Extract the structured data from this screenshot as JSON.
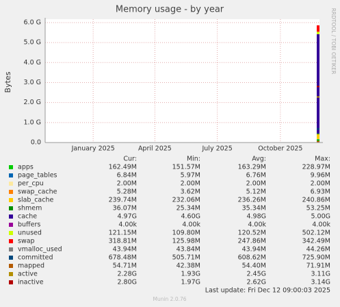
{
  "chart_data": {
    "type": "area",
    "title": "Memory usage - by year",
    "y_label": "Bytes",
    "watermark": "RRDTOOL / TOBI OETIKER",
    "x": [
      "2025-11-25"
    ],
    "xlim": [
      "2024-10-23",
      "2025-11-27"
    ],
    "xticks": [
      {
        "value": "2025-01-01",
        "label": "January 2025"
      },
      {
        "value": "2025-04-01",
        "label": "April 2025"
      },
      {
        "value": "2025-07-01",
        "label": "July 2025"
      },
      {
        "value": "2025-10-01",
        "label": "October 2025"
      }
    ],
    "ylim": [
      0,
      6170000000
    ],
    "yticks": [
      {
        "value": 0,
        "label": "0.0"
      },
      {
        "value": 1000000000,
        "label": "1.0 G"
      },
      {
        "value": 2000000000,
        "label": "2.0 G"
      },
      {
        "value": 3000000000,
        "label": "3.0 G"
      },
      {
        "value": 4000000000,
        "label": "4.0 G"
      },
      {
        "value": 5000000000,
        "label": "5.0 G"
      },
      {
        "value": 6000000000,
        "label": "6.0 G"
      }
    ],
    "grid": true,
    "stacked": true,
    "columns": [
      "Cur:",
      "Min:",
      "Avg:",
      "Max:"
    ],
    "series": [
      {
        "name": "apps",
        "color": "#00cc00",
        "kind": "area",
        "values": [
          162490000
        ],
        "value_labels": [
          "162.49M"
        ],
        "min": "151.57M",
        "avg": "163.29M",
        "max": "228.97M"
      },
      {
        "name": "page_tables",
        "color": "#0066b3",
        "kind": "area",
        "values": [
          6840000
        ],
        "value_labels": [
          "6.84M"
        ],
        "min": "5.97M",
        "avg": "6.76M",
        "max": "9.96M"
      },
      {
        "name": "per_cpu",
        "color": "#fde9a0",
        "kind": "area",
        "values": [
          2000000
        ],
        "value_labels": [
          "2.00M"
        ],
        "min": "2.00M",
        "avg": "2.00M",
        "max": "2.00M"
      },
      {
        "name": "swap_cache",
        "color": "#ff8000",
        "kind": "area",
        "values": [
          5280000
        ],
        "value_labels": [
          "5.28M"
        ],
        "min": "3.62M",
        "avg": "5.12M",
        "max": "6.93M"
      },
      {
        "name": "slab_cache",
        "color": "#ffcc00",
        "kind": "area",
        "values": [
          239740000
        ],
        "value_labels": [
          "239.74M"
        ],
        "min": "232.06M",
        "avg": "236.26M",
        "max": "240.86M"
      },
      {
        "name": "shmem",
        "color": "#008f00",
        "kind": "area",
        "values": [
          36070000
        ],
        "value_labels": [
          "36.07M"
        ],
        "min": "25.34M",
        "avg": "35.34M",
        "max": "53.25M"
      },
      {
        "name": "cache",
        "color": "#330099",
        "kind": "area",
        "values": [
          4970000000
        ],
        "value_labels": [
          "4.97G"
        ],
        "min": "4.60G",
        "avg": "4.98G",
        "max": "5.00G"
      },
      {
        "name": "buffers",
        "color": "#990099",
        "kind": "area",
        "values": [
          4000
        ],
        "value_labels": [
          "4.00k"
        ],
        "min": "4.00k",
        "avg": "4.00k",
        "max": "4.00k"
      },
      {
        "name": "unused",
        "color": "#ccff00",
        "kind": "area",
        "values": [
          121150000
        ],
        "value_labels": [
          "121.15M"
        ],
        "min": "109.80M",
        "avg": "120.52M",
        "max": "502.12M"
      },
      {
        "name": "swap",
        "color": "#ff0000",
        "kind": "area",
        "values": [
          318810000
        ],
        "value_labels": [
          "318.81M"
        ],
        "min": "125.98M",
        "avg": "247.86M",
        "max": "342.49M"
      },
      {
        "name": "vmalloc_used",
        "color": "#808080",
        "kind": "line",
        "values": [
          43940000
        ],
        "value_labels": [
          "43.94M"
        ],
        "min": "43.84M",
        "avg": "43.94M",
        "max": "44.26M"
      },
      {
        "name": "committed",
        "color": "#00487d",
        "kind": "line",
        "values": [
          678480000
        ],
        "value_labels": [
          "678.48M"
        ],
        "min": "505.71M",
        "avg": "608.62M",
        "max": "725.90M"
      },
      {
        "name": "mapped",
        "color": "#b35a00",
        "kind": "line",
        "values": [
          54710000
        ],
        "value_labels": [
          "54.71M"
        ],
        "min": "42.38M",
        "avg": "54.40M",
        "max": "71.91M"
      },
      {
        "name": "active",
        "color": "#b38f00",
        "kind": "line",
        "values": [
          2280000000
        ],
        "value_labels": [
          "2.28G"
        ],
        "min": "1.93G",
        "avg": "2.45G",
        "max": "3.11G"
      },
      {
        "name": "inactive",
        "color": "#b30000",
        "kind": "line",
        "values": [
          2800000000
        ],
        "value_labels": [
          "2.80G"
        ],
        "min": "1.97G",
        "avg": "2.62G",
        "max": "3.14G"
      }
    ],
    "last_update": "Last update: Fri Dec 12 09:00:03 2025",
    "footer": "Munin 2.0.76"
  }
}
